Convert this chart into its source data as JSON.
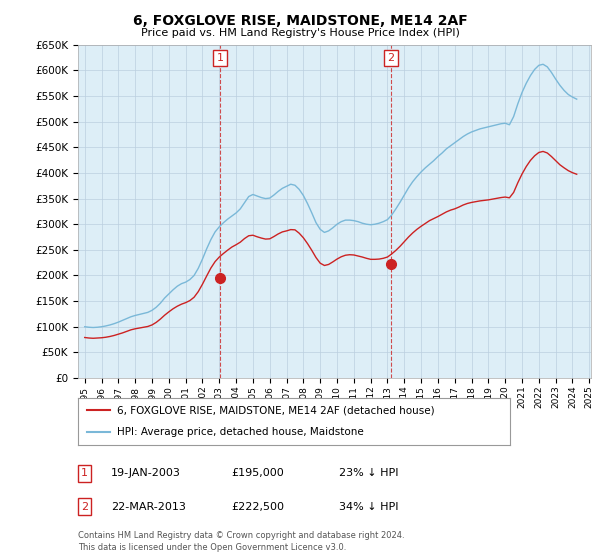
{
  "title": "6, FOXGLOVE RISE, MAIDSTONE, ME14 2AF",
  "subtitle": "Price paid vs. HM Land Registry's House Price Index (HPI)",
  "ylim": [
    0,
    650000
  ],
  "yticks": [
    0,
    50000,
    100000,
    150000,
    200000,
    250000,
    300000,
    350000,
    400000,
    450000,
    500000,
    550000,
    600000,
    650000
  ],
  "hpi_color": "#7ab8d8",
  "price_color": "#cc2222",
  "background_color": "#ffffff",
  "plot_bg_color": "#ddeef7",
  "grid_color": "#bbcfdf",
  "annotation_color": "#cc2222",
  "transaction1": {
    "date": "19-JAN-2003",
    "price": 195000,
    "label": "1",
    "pct": "23% ↓ HPI"
  },
  "transaction2": {
    "date": "22-MAR-2013",
    "price": 222500,
    "label": "2",
    "pct": "34% ↓ HPI"
  },
  "legend_line1": "6, FOXGLOVE RISE, MAIDSTONE, ME14 2AF (detached house)",
  "legend_line2": "HPI: Average price, detached house, Maidstone",
  "footer1": "Contains HM Land Registry data © Crown copyright and database right 2024.",
  "footer2": "This data is licensed under the Open Government Licence v3.0.",
  "hpi_data_years": [
    1995.0,
    1995.25,
    1995.5,
    1995.75,
    1996.0,
    1996.25,
    1996.5,
    1996.75,
    1997.0,
    1997.25,
    1997.5,
    1997.75,
    1998.0,
    1998.25,
    1998.5,
    1998.75,
    1999.0,
    1999.25,
    1999.5,
    1999.75,
    2000.0,
    2000.25,
    2000.5,
    2000.75,
    2001.0,
    2001.25,
    2001.5,
    2001.75,
    2002.0,
    2002.25,
    2002.5,
    2002.75,
    2003.0,
    2003.25,
    2003.5,
    2003.75,
    2004.0,
    2004.25,
    2004.5,
    2004.75,
    2005.0,
    2005.25,
    2005.5,
    2005.75,
    2006.0,
    2006.25,
    2006.5,
    2006.75,
    2007.0,
    2007.25,
    2007.5,
    2007.75,
    2008.0,
    2008.25,
    2008.5,
    2008.75,
    2009.0,
    2009.25,
    2009.5,
    2009.75,
    2010.0,
    2010.25,
    2010.5,
    2010.75,
    2011.0,
    2011.25,
    2011.5,
    2011.75,
    2012.0,
    2012.25,
    2012.5,
    2012.75,
    2013.0,
    2013.25,
    2013.5,
    2013.75,
    2014.0,
    2014.25,
    2014.5,
    2014.75,
    2015.0,
    2015.25,
    2015.5,
    2015.75,
    2016.0,
    2016.25,
    2016.5,
    2016.75,
    2017.0,
    2017.25,
    2017.5,
    2017.75,
    2018.0,
    2018.25,
    2018.5,
    2018.75,
    2019.0,
    2019.25,
    2019.5,
    2019.75,
    2020.0,
    2020.25,
    2020.5,
    2020.75,
    2021.0,
    2021.25,
    2021.5,
    2021.75,
    2022.0,
    2022.25,
    2022.5,
    2022.75,
    2023.0,
    2023.25,
    2023.5,
    2023.75,
    2024.0,
    2024.25
  ],
  "hpi_data_values": [
    100000,
    99000,
    98500,
    99000,
    100000,
    101500,
    103500,
    106000,
    109000,
    112500,
    116000,
    119500,
    122000,
    124000,
    126000,
    128000,
    132000,
    138000,
    146000,
    156000,
    164000,
    172000,
    179000,
    184000,
    187000,
    192000,
    200000,
    214000,
    232000,
    252000,
    270000,
    285000,
    295000,
    303000,
    310000,
    316000,
    322000,
    330000,
    342000,
    354000,
    358000,
    355000,
    352000,
    350000,
    351000,
    357000,
    364000,
    370000,
    374000,
    378000,
    376000,
    368000,
    356000,
    340000,
    322000,
    303000,
    290000,
    284000,
    287000,
    293000,
    300000,
    305000,
    308000,
    308000,
    307000,
    305000,
    302000,
    300000,
    299000,
    300000,
    302000,
    305000,
    309000,
    318000,
    330000,
    343000,
    357000,
    371000,
    383000,
    393000,
    402000,
    410000,
    417000,
    424000,
    432000,
    439000,
    447000,
    453000,
    459000,
    465000,
    471000,
    476000,
    480000,
    483000,
    486000,
    488000,
    490000,
    492000,
    494000,
    496000,
    497000,
    494000,
    510000,
    535000,
    557000,
    575000,
    590000,
    602000,
    610000,
    612000,
    607000,
    596000,
    583000,
    571000,
    561000,
    553000,
    548000,
    544000
  ],
  "price_data_years": [
    1995.0,
    1995.25,
    1995.5,
    1995.75,
    1996.0,
    1996.25,
    1996.5,
    1996.75,
    1997.0,
    1997.25,
    1997.5,
    1997.75,
    1998.0,
    1998.25,
    1998.5,
    1998.75,
    1999.0,
    1999.25,
    1999.5,
    1999.75,
    2000.0,
    2000.25,
    2000.5,
    2000.75,
    2001.0,
    2001.25,
    2001.5,
    2001.75,
    2002.0,
    2002.25,
    2002.5,
    2002.75,
    2003.0,
    2003.25,
    2003.5,
    2003.75,
    2004.0,
    2004.25,
    2004.5,
    2004.75,
    2005.0,
    2005.25,
    2005.5,
    2005.75,
    2006.0,
    2006.25,
    2006.5,
    2006.75,
    2007.0,
    2007.25,
    2007.5,
    2007.75,
    2008.0,
    2008.25,
    2008.5,
    2008.75,
    2009.0,
    2009.25,
    2009.5,
    2009.75,
    2010.0,
    2010.25,
    2010.5,
    2010.75,
    2011.0,
    2011.25,
    2011.5,
    2011.75,
    2012.0,
    2012.25,
    2012.5,
    2012.75,
    2013.0,
    2013.25,
    2013.5,
    2013.75,
    2014.0,
    2014.25,
    2014.5,
    2014.75,
    2015.0,
    2015.25,
    2015.5,
    2015.75,
    2016.0,
    2016.25,
    2016.5,
    2016.75,
    2017.0,
    2017.25,
    2017.5,
    2017.75,
    2018.0,
    2018.25,
    2018.5,
    2018.75,
    2019.0,
    2019.25,
    2019.5,
    2019.75,
    2020.0,
    2020.25,
    2020.5,
    2020.75,
    2021.0,
    2021.25,
    2021.5,
    2021.75,
    2022.0,
    2022.25,
    2022.5,
    2022.75,
    2023.0,
    2023.25,
    2023.5,
    2023.75,
    2024.0,
    2024.25
  ],
  "price_data_values": [
    79000,
    78000,
    77500,
    78000,
    78500,
    79500,
    81000,
    83000,
    85500,
    88000,
    91000,
    94000,
    96000,
    97500,
    99000,
    100500,
    103500,
    108500,
    115000,
    122500,
    129000,
    135000,
    140000,
    144000,
    147000,
    151000,
    157500,
    168500,
    183000,
    199000,
    214500,
    227000,
    236000,
    243000,
    249500,
    255500,
    260000,
    265000,
    272000,
    277500,
    278500,
    275500,
    273000,
    271000,
    271500,
    276000,
    281000,
    285000,
    287000,
    289500,
    289000,
    282500,
    273500,
    262000,
    249000,
    235000,
    224000,
    219500,
    221500,
    226500,
    232000,
    236500,
    239500,
    240500,
    240000,
    238000,
    236000,
    233500,
    231500,
    231500,
    232000,
    233500,
    236000,
    242000,
    249000,
    257000,
    266000,
    275000,
    283000,
    290000,
    296000,
    301500,
    307000,
    311000,
    315000,
    319500,
    324000,
    327500,
    330000,
    333500,
    337500,
    340500,
    342500,
    344000,
    345500,
    346500,
    347500,
    349000,
    350500,
    352000,
    353000,
    351500,
    362000,
    381000,
    398000,
    412500,
    424500,
    433500,
    440000,
    442000,
    439000,
    432000,
    424000,
    416000,
    410000,
    404500,
    400500,
    397500
  ],
  "t1_x": 2003.05,
  "t1_y": 195000,
  "t2_x": 2013.22,
  "t2_y": 222500,
  "xlim_left": 1994.6,
  "xlim_right": 2025.1
}
